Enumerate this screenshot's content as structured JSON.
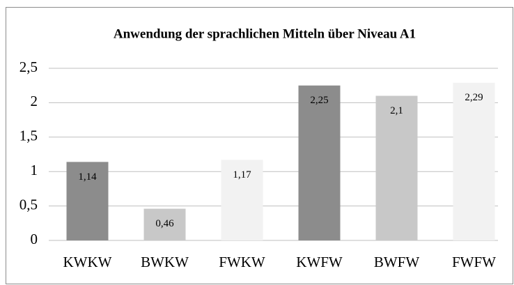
{
  "chart_data": {
    "type": "bar",
    "title": "Anwendung der sprachlichen Mitteln über Niveau A1",
    "categories": [
      "KWKW",
      "BWKW",
      "FWKW",
      "KWFW",
      "BWFW",
      "FWFW"
    ],
    "values": [
      1.14,
      0.46,
      1.17,
      2.25,
      2.1,
      2.29
    ],
    "value_labels": [
      "1,14",
      "0,46",
      "1,17",
      "2,25",
      "2,1",
      "2,29"
    ],
    "colors": [
      "#8c8c8c",
      "#c8c8c8",
      "#f2f2f2",
      "#8c8c8c",
      "#c8c8c8",
      "#f2f2f2"
    ],
    "ylim": [
      0,
      2.5
    ],
    "yticks": [
      0,
      {
        "value": 0.5,
        "label": "0,5"
      },
      1,
      {
        "value": 1.5,
        "label": "1,5"
      },
      2,
      {
        "value": 2.5,
        "label": "2,5"
      }
    ],
    "grid": true
  }
}
